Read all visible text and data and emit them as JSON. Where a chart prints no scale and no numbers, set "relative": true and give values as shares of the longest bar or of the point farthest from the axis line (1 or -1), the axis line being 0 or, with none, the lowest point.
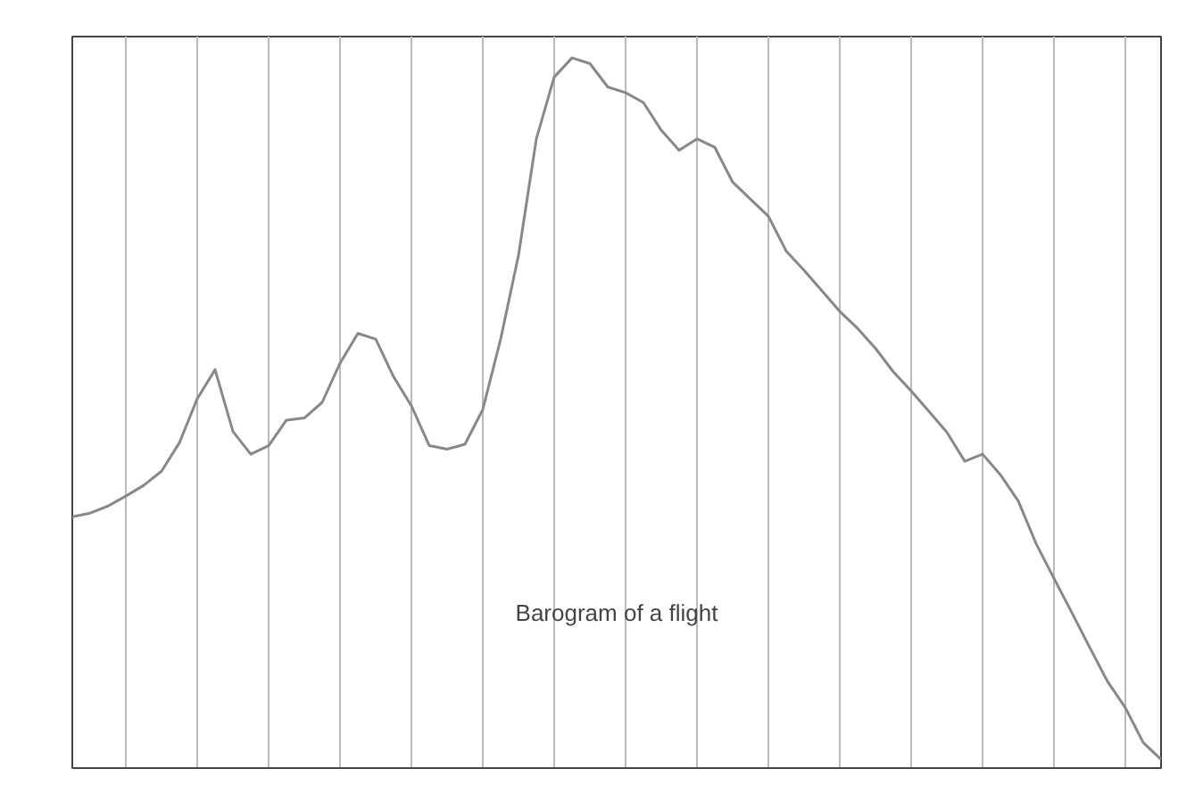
{
  "chart_data": {
    "type": "line",
    "relative": true,
    "grid": "x",
    "marker": "none",
    "annotations": [
      "Barogram of a flight"
    ],
    "categories": [
      null,
      null,
      null,
      null,
      null,
      null,
      null,
      null,
      null,
      null,
      null,
      null,
      null,
      null,
      null,
      null,
      null,
      null,
      null,
      null,
      null,
      null,
      null,
      null,
      null,
      null,
      null,
      null,
      null,
      null,
      null,
      null,
      null,
      null,
      null,
      null,
      null,
      null,
      null,
      null,
      null,
      null,
      null,
      null,
      null,
      null,
      null,
      null,
      null,
      null,
      null,
      null,
      null,
      null,
      null,
      null,
      null,
      null,
      null,
      null,
      null,
      null
    ],
    "series": [
      {
        "color": "#888888",
        "values": [
          0.354,
          0.359,
          0.369,
          0.383,
          0.398,
          0.418,
          0.458,
          0.52,
          0.561,
          0.474,
          0.442,
          0.454,
          0.49,
          0.493,
          0.515,
          0.57,
          0.612,
          0.604,
          0.551,
          0.51,
          0.454,
          0.449,
          0.456,
          0.505,
          0.604,
          0.722,
          0.886,
          0.973,
          1.0,
          0.992,
          0.959,
          0.951,
          0.937,
          0.898,
          0.87,
          0.886,
          0.874,
          0.825,
          0.801,
          0.777,
          0.728,
          0.701,
          0.672,
          0.643,
          0.619,
          0.591,
          0.558,
          0.531,
          0.502,
          0.473,
          0.432,
          0.442,
          0.413,
          0.376,
          0.316,
          0.267,
          0.219,
          0.17,
          0.122,
          0.085,
          0.036,
          0.012
        ]
      }
    ]
  }
}
